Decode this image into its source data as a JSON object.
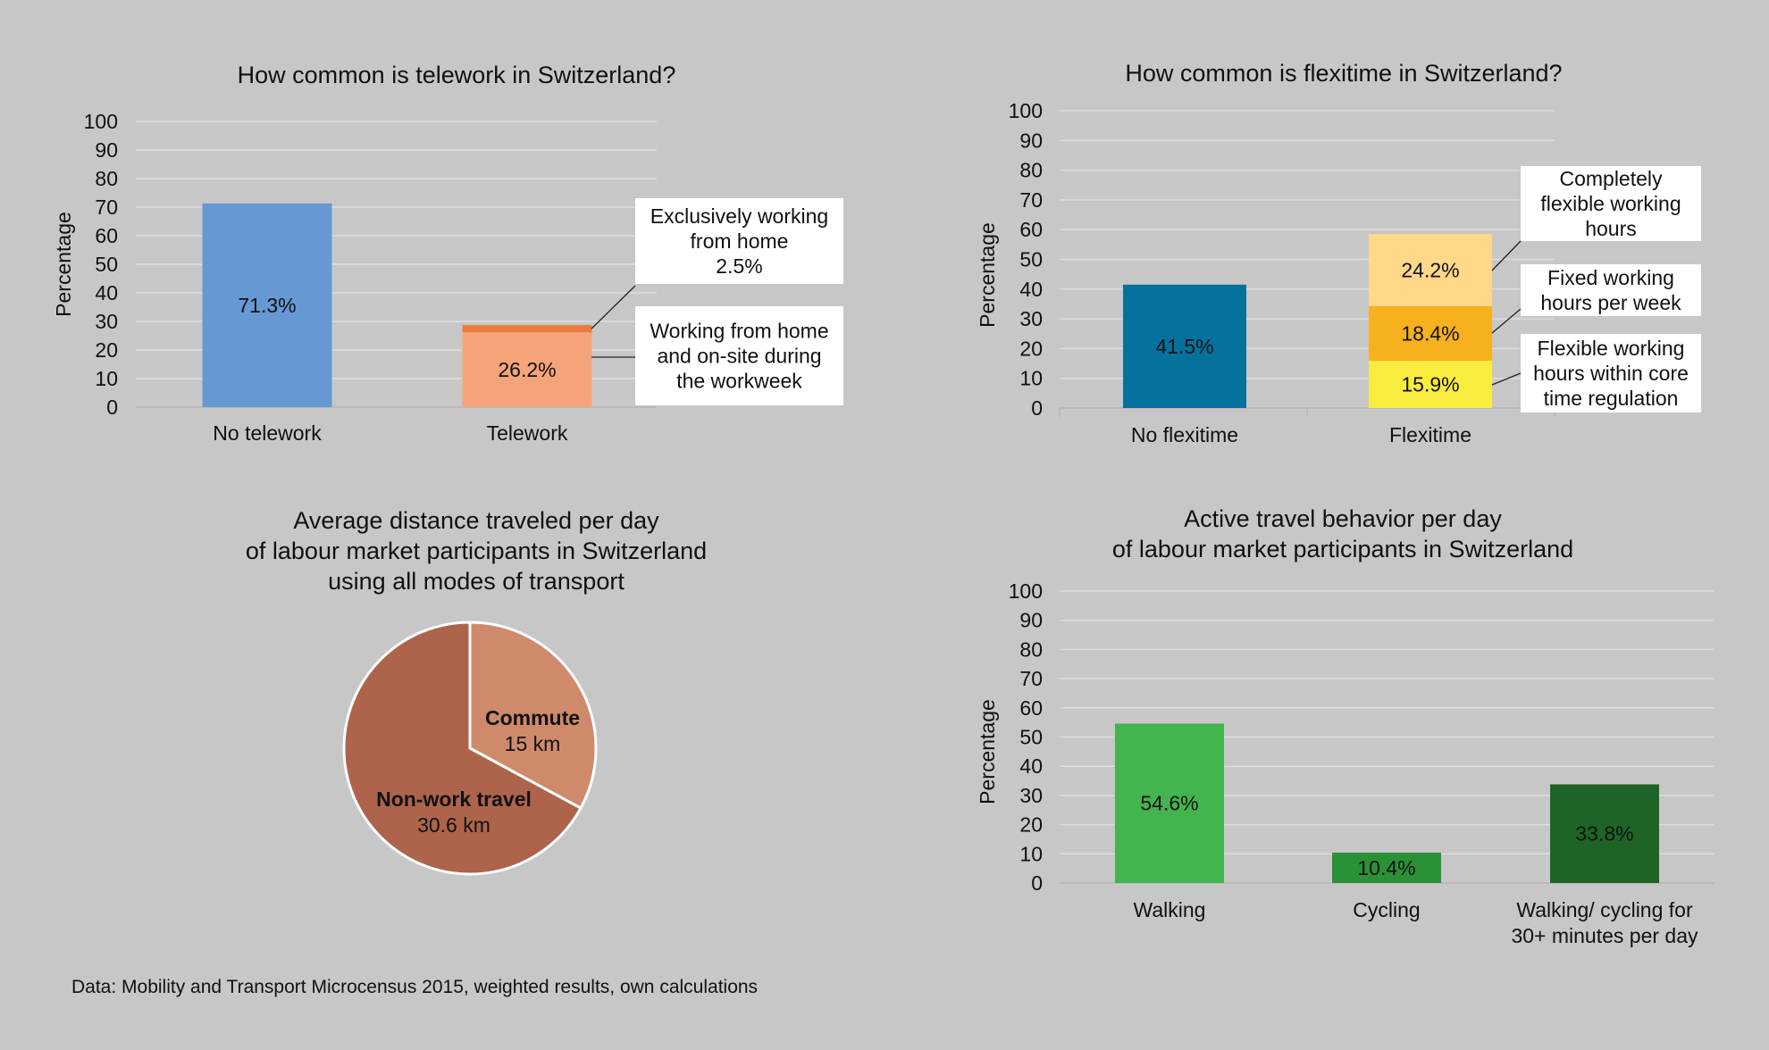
{
  "footnote": "Data: Mobility and Transport Microcensus 2015, weighted results, own calculations",
  "colors": {
    "background": "#c8c7c7",
    "telework_none": "#6699d3",
    "telework_partial": "#f5a47a",
    "telework_exclusive": "#ea7a3e",
    "flex_none": "#05729e",
    "flex_core": "#f8ec3e",
    "flex_fixed": "#f5b11e",
    "flex_complete": "#ffd988",
    "commute": "#cf8a6c",
    "nonwork": "#ad644a",
    "walking": "#43b54e",
    "cycling": "#2b9136",
    "active30": "#1e6426"
  },
  "chart_data": [
    {
      "type": "bar",
      "stacked": true,
      "title": "How common is telework in Switzerland?",
      "ylabel": "Percentage",
      "ylim": [
        0,
        100
      ],
      "yticks": [
        0,
        10,
        20,
        30,
        40,
        50,
        60,
        70,
        80,
        90,
        100
      ],
      "categories": [
        "No telework",
        "Telework"
      ],
      "series": [
        {
          "name": "No telework",
          "values": [
            71.3,
            null
          ],
          "label": "71.3%"
        },
        {
          "name": "Working from home and on-site during the workweek",
          "values": [
            null,
            26.2
          ],
          "label": "26.2%"
        },
        {
          "name": "Exclusively working from home",
          "values": [
            null,
            2.5
          ]
        }
      ],
      "annotations": [
        {
          "lines": [
            "Exclusively working",
            "from home",
            "2.5%"
          ]
        },
        {
          "lines": [
            "Working from home",
            "and on-site during",
            "the workweek"
          ]
        }
      ],
      "grid": true
    },
    {
      "type": "bar",
      "stacked": true,
      "title": "How common is flexitime in Switzerland?",
      "ylabel": "Percentage",
      "ylim": [
        0,
        100
      ],
      "yticks": [
        0,
        10,
        20,
        30,
        40,
        50,
        60,
        70,
        80,
        90,
        100
      ],
      "categories": [
        "No flexitime",
        "Flexitime"
      ],
      "series": [
        {
          "name": "No flexitime",
          "values": [
            41.5,
            null
          ],
          "label": "41.5%"
        },
        {
          "name": "Flexible working hours within core time regulation",
          "values": [
            null,
            15.9
          ],
          "label": "15.9%"
        },
        {
          "name": "Fixed working hours per week",
          "values": [
            null,
            18.4
          ],
          "label": "18.4%"
        },
        {
          "name": "Completely flexible working hours",
          "values": [
            null,
            24.2
          ],
          "label": "24.2%"
        }
      ],
      "annotations": [
        {
          "lines": [
            "Completely",
            "flexible working",
            "hours"
          ]
        },
        {
          "lines": [
            "Fixed working",
            "hours per week"
          ]
        },
        {
          "lines": [
            "Flexible working",
            "hours within core",
            "time regulation"
          ]
        }
      ],
      "grid": true
    },
    {
      "type": "pie",
      "title": [
        "Average distance traveled per day",
        "of labour market participants in Switzerland",
        "using all modes of transport"
      ],
      "slices": [
        {
          "name": "Commute",
          "value": 15,
          "label": "15 km"
        },
        {
          "name": "Non-work travel",
          "value": 30.6,
          "label": "30.6 km"
        }
      ]
    },
    {
      "type": "bar",
      "title": [
        "Active travel behavior per day",
        "of labour market participants in Switzerland"
      ],
      "ylabel": "Percentage",
      "ylim": [
        0,
        100
      ],
      "yticks": [
        0,
        10,
        20,
        30,
        40,
        50,
        60,
        70,
        80,
        90,
        100
      ],
      "categories": [
        [
          "Walking"
        ],
        [
          "Cycling"
        ],
        [
          "Walking/ cycling for",
          "30+ minutes per day"
        ]
      ],
      "values": [
        54.6,
        10.4,
        33.8
      ],
      "labels": [
        "54.6%",
        "10.4%",
        "33.8%"
      ],
      "grid": true
    }
  ]
}
